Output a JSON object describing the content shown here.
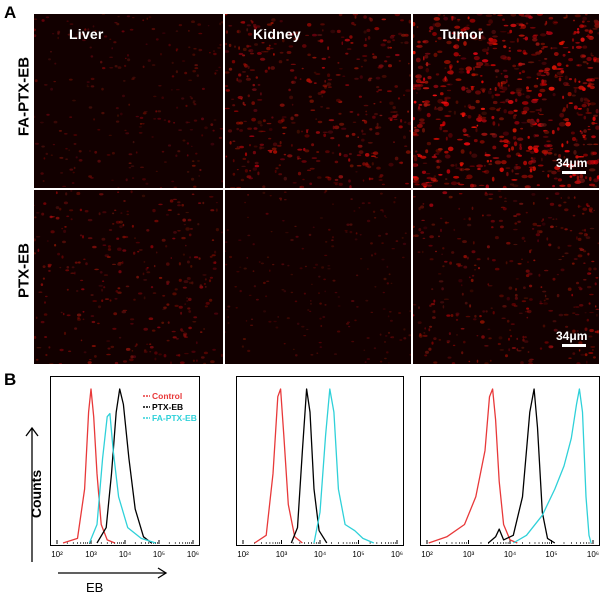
{
  "panel_a": {
    "letter": "A",
    "rows": [
      "FA-PTX-EB",
      "PTX-EB"
    ],
    "columns": [
      "Liver",
      "Kidney",
      "Tumor"
    ],
    "scale_bar_label": "34μm"
  },
  "panel_b": {
    "letter": "B",
    "y_axis_label": "Counts",
    "x_axis_label": "EB",
    "tick_labels": [
      "10²",
      "10³",
      "10⁴",
      "10⁵",
      "10⁶"
    ],
    "legend": [
      {
        "label": "Control",
        "color": "#e8393a"
      },
      {
        "label": "PTX-EB",
        "color": "#000000"
      },
      {
        "label": "FA-PTX-EB",
        "color": "#2fd1d9"
      }
    ]
  },
  "chart_data": [
    {
      "type": "line",
      "panel": "B-Liver",
      "x_scale": "log",
      "xlim": [
        100,
        1000000
      ],
      "series": [
        {
          "name": "Control",
          "color": "#e8393a",
          "points": [
            [
              150,
              0
            ],
            [
              400,
              0.03
            ],
            [
              650,
              0.35
            ],
            [
              850,
              0.85
            ],
            [
              1000,
              1.0
            ],
            [
              1200,
              0.82
            ],
            [
              1500,
              0.45
            ],
            [
              2000,
              0.12
            ],
            [
              3000,
              0.02
            ],
            [
              5000,
              0
            ]
          ]
        },
        {
          "name": "PTX-EB",
          "color": "#000000",
          "points": [
            [
              1500,
              0
            ],
            [
              2800,
              0.1
            ],
            [
              4000,
              0.45
            ],
            [
              5500,
              0.85
            ],
            [
              7000,
              1.0
            ],
            [
              9000,
              0.9
            ],
            [
              13000,
              0.55
            ],
            [
              20000,
              0.22
            ],
            [
              35000,
              0.04
            ],
            [
              60000,
              0
            ]
          ]
        },
        {
          "name": "FA-PTX-EB",
          "color": "#2fd1d9",
          "points": [
            [
              900,
              0
            ],
            [
              1500,
              0.12
            ],
            [
              2200,
              0.55
            ],
            [
              3000,
              0.82
            ],
            [
              3600,
              0.84
            ],
            [
              4500,
              0.6
            ],
            [
              6500,
              0.3
            ],
            [
              12000,
              0.1
            ],
            [
              30000,
              0.03
            ],
            [
              80000,
              0
            ]
          ]
        }
      ]
    },
    {
      "type": "line",
      "panel": "B-Kidney",
      "x_scale": "log",
      "xlim": [
        100,
        1000000
      ],
      "series": [
        {
          "name": "Control",
          "color": "#e8393a",
          "points": [
            [
              200,
              0
            ],
            [
              400,
              0.05
            ],
            [
              600,
              0.45
            ],
            [
              800,
              0.95
            ],
            [
              950,
              1.0
            ],
            [
              1150,
              0.7
            ],
            [
              1500,
              0.25
            ],
            [
              2200,
              0.04
            ],
            [
              3500,
              0
            ]
          ]
        },
        {
          "name": "PTX-EB",
          "color": "#000000",
          "points": [
            [
              1800,
              0
            ],
            [
              2600,
              0.1
            ],
            [
              3500,
              0.6
            ],
            [
              4500,
              1.0
            ],
            [
              5500,
              0.85
            ],
            [
              7000,
              0.35
            ],
            [
              9500,
              0.08
            ],
            [
              15000,
              0
            ]
          ]
        },
        {
          "name": "FA-PTX-EB",
          "color": "#2fd1d9",
          "points": [
            [
              7000,
              0
            ],
            [
              10000,
              0.2
            ],
            [
              14000,
              0.7
            ],
            [
              18000,
              1.0
            ],
            [
              23000,
              0.85
            ],
            [
              30000,
              0.35
            ],
            [
              45000,
              0.12
            ],
            [
              80000,
              0.08
            ],
            [
              130000,
              0.03
            ],
            [
              250000,
              0
            ]
          ]
        }
      ]
    },
    {
      "type": "line",
      "panel": "B-Tumor",
      "x_scale": "log",
      "xlim": [
        100,
        1000000
      ],
      "series": [
        {
          "name": "Control",
          "color": "#e8393a",
          "points": [
            [
              110,
              0
            ],
            [
              300,
              0.04
            ],
            [
              800,
              0.12
            ],
            [
              1500,
              0.3
            ],
            [
              2500,
              0.6
            ],
            [
              3200,
              0.95
            ],
            [
              3800,
              1.0
            ],
            [
              4500,
              0.8
            ],
            [
              5500,
              0.4
            ],
            [
              7000,
              0.12
            ],
            [
              10000,
              0.02
            ],
            [
              15000,
              0
            ]
          ]
        },
        {
          "name": "PTX-EB",
          "color": "#000000",
          "points": [
            [
              3000,
              0
            ],
            [
              4500,
              0.04
            ],
            [
              5500,
              0.09
            ],
            [
              7000,
              0.02
            ],
            [
              12000,
              0.05
            ],
            [
              20000,
              0.3
            ],
            [
              30000,
              0.85
            ],
            [
              38000,
              1.0
            ],
            [
              46000,
              0.75
            ],
            [
              60000,
              0.2
            ],
            [
              80000,
              0.03
            ],
            [
              120000,
              0
            ]
          ]
        },
        {
          "name": "FA-PTX-EB",
          "color": "#2fd1d9",
          "points": [
            [
              12000,
              0
            ],
            [
              25000,
              0.05
            ],
            [
              60000,
              0.18
            ],
            [
              120000,
              0.35
            ],
            [
              200000,
              0.5
            ],
            [
              300000,
              0.68
            ],
            [
              400000,
              0.9
            ],
            [
              470000,
              1.0
            ],
            [
              560000,
              0.85
            ],
            [
              680000,
              0.3
            ],
            [
              800000,
              0.05
            ],
            [
              900000,
              0
            ]
          ]
        }
      ]
    }
  ]
}
